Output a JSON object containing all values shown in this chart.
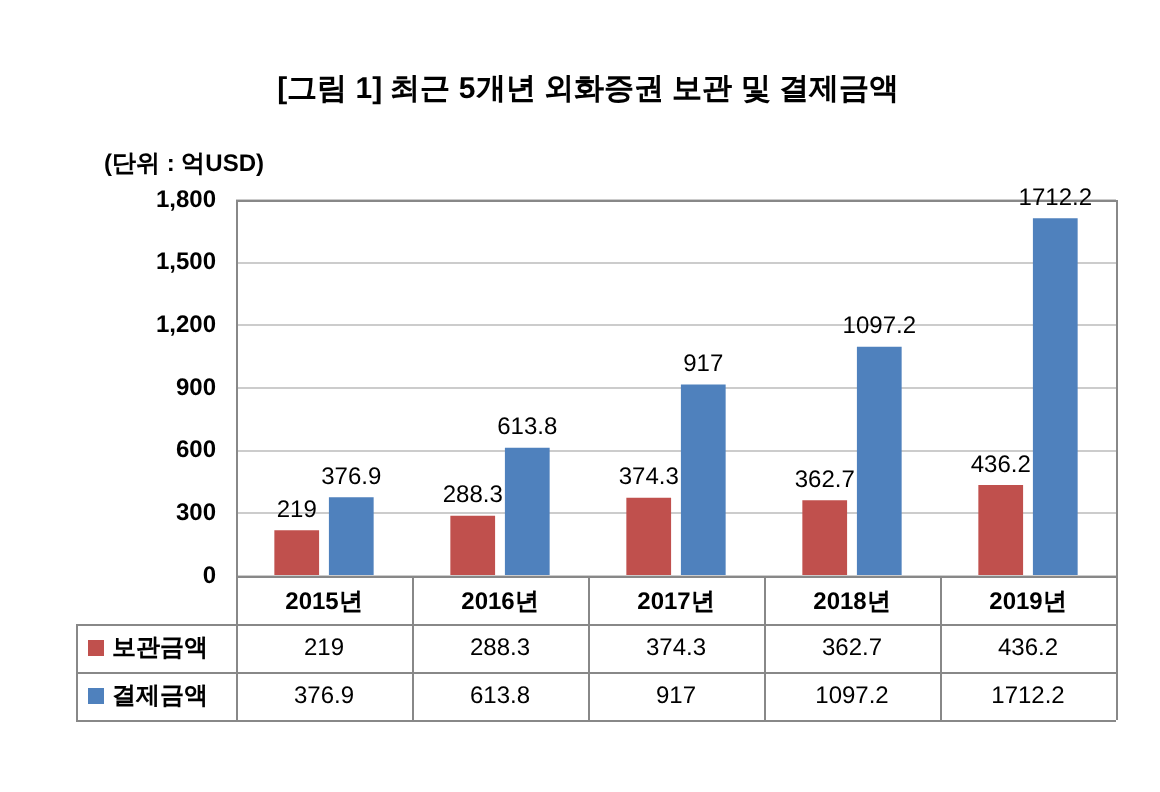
{
  "chart_data": {
    "type": "bar",
    "title": "[그림 1] 최근 5개년 외화증권 보관 및 결제금액",
    "annotations": [
      "(단위 : 억USD)",
      "219",
      "288.3",
      "374.3",
      "362.7",
      "436.2",
      "376.9",
      "613.8",
      "917",
      "1097.2",
      "1712.2"
    ],
    "categories": [
      "2015년",
      "2016년",
      "2017년",
      "2018년",
      "2019년"
    ],
    "series": [
      {
        "name": "보관금액",
        "color": "#c0504d",
        "values": [
          219,
          288.3,
          374.3,
          362.7,
          436.2
        ]
      },
      {
        "name": "결제금액",
        "color": "#4f81bd",
        "values": [
          376.9,
          613.8,
          917,
          1097.2,
          1712.2
        ]
      }
    ],
    "ylim": [
      0,
      1800
    ],
    "yticks": [
      0,
      300,
      600,
      900,
      {
        "value": 1200,
        "label": "1,200"
      },
      {
        "value": 1500,
        "label": "1,500"
      },
      {
        "value": 1800,
        "label": "1,800"
      }
    ],
    "grid": "y",
    "legend": "bottom",
    "data_labels": true
  }
}
